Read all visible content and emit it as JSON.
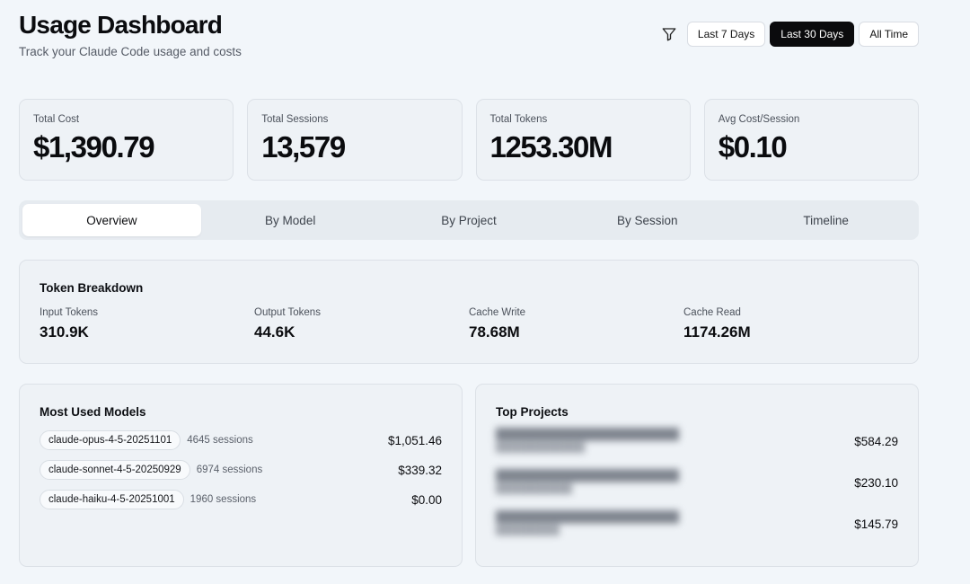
{
  "header": {
    "title": "Usage Dashboard",
    "subtitle": "Track your Claude Code usage and costs"
  },
  "range_filter": {
    "icon": "filter-icon",
    "options": [
      "Last 7 Days",
      "Last 30 Days",
      "All Time"
    ],
    "selected": "Last 30 Days"
  },
  "stats": [
    {
      "label": "Total Cost",
      "value": "$1,390.79"
    },
    {
      "label": "Total Sessions",
      "value": "13,579"
    },
    {
      "label": "Total Tokens",
      "value": "1253.30M"
    },
    {
      "label": "Avg Cost/Session",
      "value": "$0.10"
    }
  ],
  "tabs": [
    "Overview",
    "By Model",
    "By Project",
    "By Session",
    "Timeline"
  ],
  "active_tab": "Overview",
  "token_breakdown": {
    "title": "Token Breakdown",
    "items": [
      {
        "label": "Input Tokens",
        "value": "310.9K"
      },
      {
        "label": "Output Tokens",
        "value": "44.6K"
      },
      {
        "label": "Cache Write",
        "value": "78.68M"
      },
      {
        "label": "Cache Read",
        "value": "1174.26M"
      }
    ]
  },
  "models": {
    "title": "Most Used Models",
    "items": [
      {
        "name": "claude-opus-4-5-20251101",
        "sessions": "4645 sessions",
        "cost": "$1,051.46"
      },
      {
        "name": "claude-sonnet-4-5-20250929",
        "sessions": "6974 sessions",
        "cost": "$339.32"
      },
      {
        "name": "claude-haiku-4-5-20251001",
        "sessions": "1960 sessions",
        "cost": "$0.00"
      }
    ]
  },
  "projects": {
    "title": "Top Projects",
    "items": [
      {
        "cost": "$584.29"
      },
      {
        "cost": "$230.10"
      },
      {
        "cost": "$145.79"
      }
    ]
  }
}
